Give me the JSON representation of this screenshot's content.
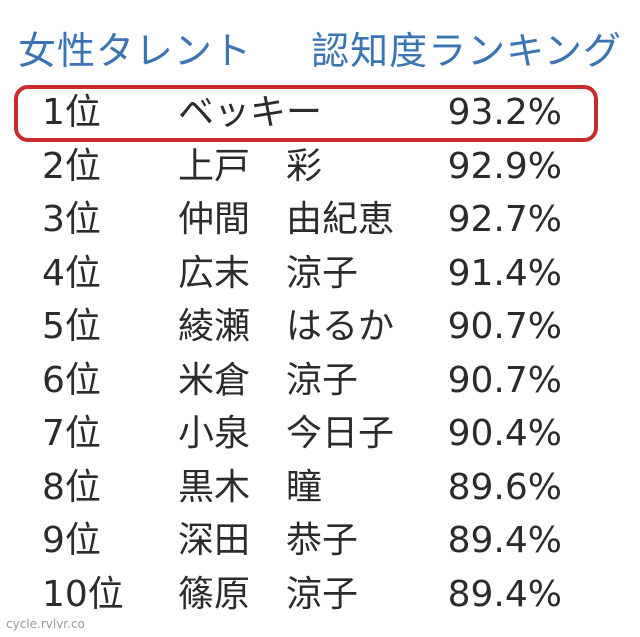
{
  "header": {
    "left_title": "女性タレント",
    "right_title": "認知度ランキング"
  },
  "colors": {
    "header_text": "#3a74b4",
    "highlight_border": "#c92a2a",
    "body_text": "#2b2b2b"
  },
  "ranking": [
    {
      "rank": "1位",
      "name": "ベッキー",
      "percent": "93.2%"
    },
    {
      "rank": "2位",
      "name": "上戸　彩",
      "percent": "92.9%"
    },
    {
      "rank": "3位",
      "name": "仲間　由紀恵",
      "percent": "92.7%"
    },
    {
      "rank": "4位",
      "name": "広末　涼子",
      "percent": "91.4%"
    },
    {
      "rank": "5位",
      "name": "綾瀬　はるか",
      "percent": "90.7%"
    },
    {
      "rank": "6位",
      "name": "米倉　涼子",
      "percent": "90.7%"
    },
    {
      "rank": "7位",
      "name": "小泉　今日子",
      "percent": "90.4%"
    },
    {
      "rank": "8位",
      "name": "黒木　瞳",
      "percent": "89.6%"
    },
    {
      "rank": "9位",
      "name": "深田　恭子",
      "percent": "89.4%"
    },
    {
      "rank": "10位",
      "name": "篠原　涼子",
      "percent": "89.4%"
    }
  ],
  "watermark": "cycle.rvlvr.co"
}
